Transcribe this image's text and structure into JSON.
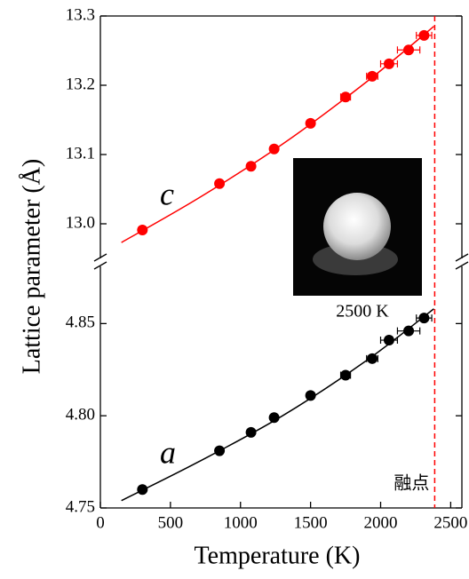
{
  "chart_data": {
    "type": "scatter",
    "xlabel": "Temperature (K)",
    "ylabel": "Lattice parameter (Å)",
    "xlim": [
      0,
      2580
    ],
    "xticks": [
      0,
      500,
      1000,
      1500,
      2000,
      2500
    ],
    "melting_point": 2386,
    "melting_label": "融点",
    "melting_color": "#ff0000",
    "inset_caption": "2500 K",
    "panels": [
      {
        "ylim": [
          12.95,
          13.3
        ],
        "yticks": [
          {
            "value": 13.0,
            "label": "13.0"
          },
          13.1,
          13.2,
          13.3
        ],
        "series": [
          {
            "name": "c",
            "color": "#ff0000",
            "x": [
              300,
              850,
              1075,
              1240,
              1500,
              1750,
              1940,
              2060,
              2200,
              2310
            ],
            "values": [
              12.991,
              13.058,
              13.083,
              13.108,
              13.145,
              13.183,
              13.213,
              13.231,
              13.251,
              13.272
            ],
            "xerr": [
              15,
              15,
              15,
              20,
              25,
              35,
              40,
              60,
              80,
              55
            ],
            "fit_x": [
              150,
              700,
              1300,
              1900,
              2380
            ],
            "fit_values": [
              12.973,
              13.037,
              13.115,
              13.205,
              13.285
            ]
          }
        ]
      },
      {
        "ylim": [
          4.75,
          4.881
        ],
        "yticks": [
          4.75,
          {
            "value": 4.8,
            "label": "4.80"
          },
          4.85
        ],
        "series": [
          {
            "name": "a",
            "color": "#000000",
            "x": [
              300,
              850,
              1075,
              1240,
              1500,
              1750,
              1940,
              2060,
              2200,
              2310
            ],
            "values": [
              4.76,
              4.781,
              4.791,
              4.799,
              4.811,
              4.822,
              4.831,
              4.841,
              4.846,
              4.853
            ],
            "xerr": [
              15,
              15,
              15,
              20,
              25,
              35,
              40,
              60,
              80,
              55
            ],
            "fit_x": [
              150,
              700,
              1300,
              1900,
              2380
            ],
            "fit_values": [
              4.754,
              4.775,
              4.8,
              4.83,
              4.858
            ]
          }
        ]
      }
    ]
  }
}
